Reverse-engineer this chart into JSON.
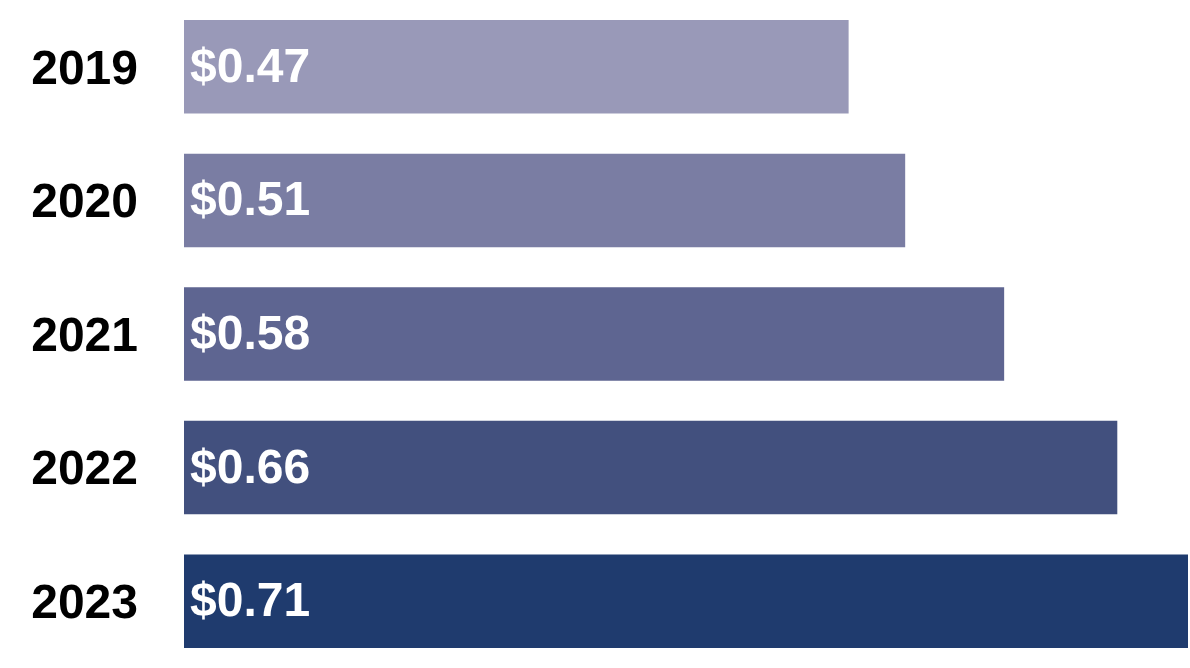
{
  "chart_data": {
    "type": "bar",
    "orientation": "horizontal",
    "categories": [
      "2019",
      "2020",
      "2021",
      "2022",
      "2023"
    ],
    "values": [
      0.47,
      0.51,
      0.58,
      0.66,
      0.71
    ],
    "colors": [
      "#9999b8",
      "#7a7da3",
      "#5e6591",
      "#42507e",
      "#1f3b6e"
    ],
    "value_labels": [
      "$0.47",
      "$0.51",
      "$0.58",
      "$0.66",
      "$0.71"
    ]
  }
}
